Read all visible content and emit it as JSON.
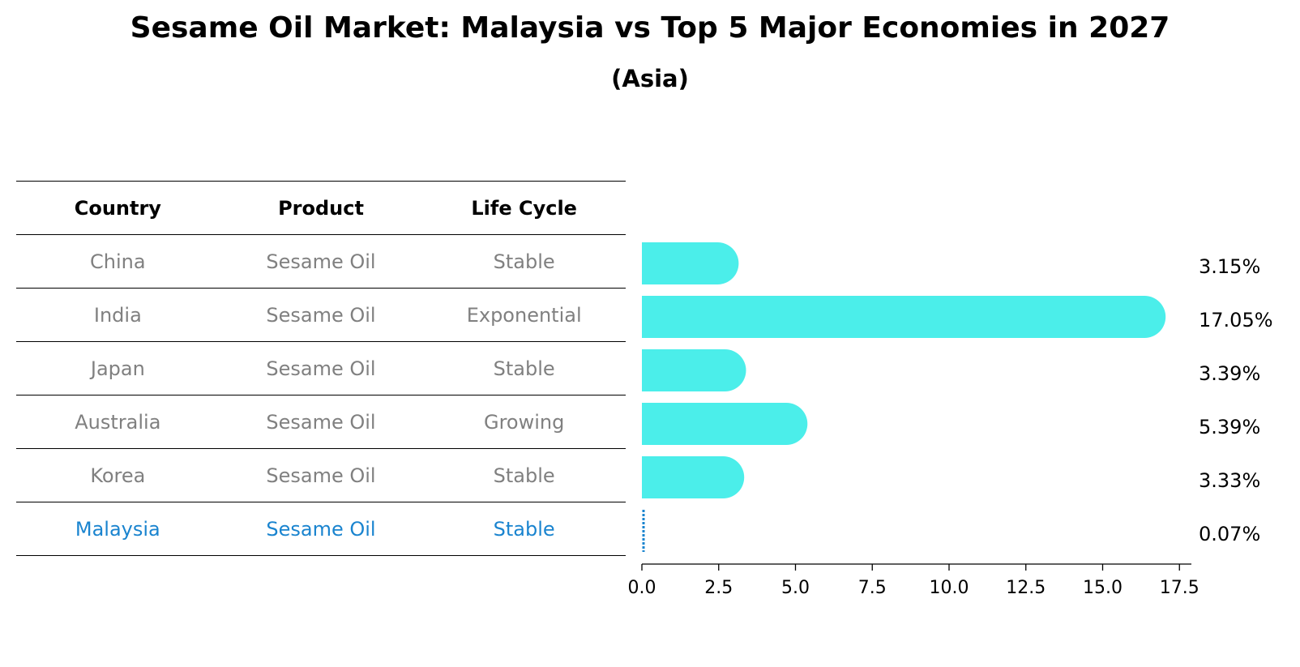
{
  "title": "Sesame Oil Market: Malaysia vs Top 5 Major Economies in 2027",
  "subtitle": "(Asia)",
  "table": {
    "headers": [
      "Country",
      "Product",
      "Life Cycle"
    ],
    "rows": [
      {
        "country": "China",
        "product": "Sesame Oil",
        "life_cycle": "Stable"
      },
      {
        "country": "India",
        "product": "Sesame Oil",
        "life_cycle": "Exponential"
      },
      {
        "country": "Japan",
        "product": "Sesame Oil",
        "life_cycle": "Stable"
      },
      {
        "country": "Australia",
        "product": "Sesame Oil",
        "life_cycle": "Growing"
      },
      {
        "country": "Korea",
        "product": "Sesame Oil",
        "life_cycle": "Stable"
      },
      {
        "country": "Malaysia",
        "product": "Sesame Oil",
        "life_cycle": "Stable"
      }
    ]
  },
  "chart_data": {
    "type": "bar",
    "orientation": "horizontal",
    "categories": [
      "China",
      "India",
      "Japan",
      "Australia",
      "Korea",
      "Malaysia"
    ],
    "values": [
      3.15,
      17.05,
      3.39,
      5.39,
      3.33,
      0.07
    ],
    "value_labels": [
      "3.15%",
      "17.05%",
      "3.39%",
      "5.39%",
      "3.33%",
      "0.07%"
    ],
    "xlim": [
      0,
      17.9
    ],
    "xticks": [
      0.0,
      2.5,
      5.0,
      7.5,
      10.0,
      12.5,
      15.0,
      17.5
    ],
    "xtick_labels": [
      "0.0",
      "2.5",
      "5.0",
      "7.5",
      "10.0",
      "12.5",
      "15.0",
      "17.5"
    ],
    "colors": {
      "bar": "#4beeea",
      "highlight": "#1a84cf"
    },
    "highlight_category": "Malaysia"
  }
}
